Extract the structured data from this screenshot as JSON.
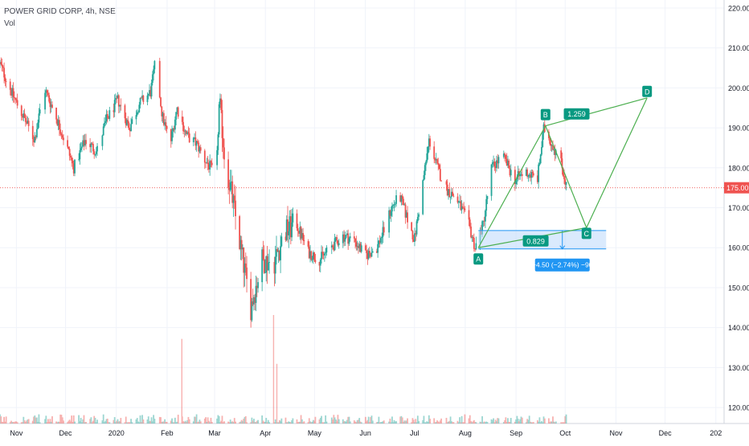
{
  "header": {
    "symbol_line": "POWER GRID CORP, 4h, NSE",
    "volume_label": "Vol"
  },
  "colors": {
    "up": "#26a69a",
    "down": "#ef5350",
    "pattern": "#4caf50",
    "label_bg": "#089981",
    "range_fill": "#bbd9fb",
    "range_stroke": "#2196f3",
    "price_line": "#ef5350"
  },
  "chart_data": {
    "type": "candlestick",
    "title": "",
    "ylim": [
      116,
      222
    ],
    "y_ticks": [
      "120.00",
      "130.00",
      "140.00",
      "150.00",
      "160.00",
      "170.00",
      "180.00",
      "190.00",
      "200.00",
      "210.00",
      "220.00"
    ],
    "x_ticks": [
      "Nov",
      "Dec",
      "2020",
      "Feb",
      "Mar",
      "Apr",
      "May",
      "Jun",
      "Jul",
      "Aug",
      "Sep",
      "Oct",
      "Nov",
      "Dec",
      "202"
    ],
    "x_tick_dates": [
      "2019-11-01",
      "2019-12-01",
      "2020-01-01",
      "2020-02-01",
      "2020-03-01",
      "2020-04-01",
      "2020-05-01",
      "2020-06-01",
      "2020-07-01",
      "2020-08-01",
      "2020-09-01",
      "2020-10-01",
      "2020-11-01",
      "2020-12-01",
      "2021-01-01"
    ],
    "x_range": [
      "2019-10-22",
      "2021-01-06"
    ],
    "current_price": 175.0,
    "current_price_label": "175.00",
    "price_path": [
      [
        "2019-10-22",
        206
      ],
      [
        "2019-10-30",
        198
      ],
      [
        "2019-11-05",
        193
      ],
      [
        "2019-11-12",
        187
      ],
      [
        "2019-11-18",
        200
      ],
      [
        "2019-11-25",
        193
      ],
      [
        "2019-12-02",
        185
      ],
      [
        "2019-12-06",
        180
      ],
      [
        "2019-12-13",
        187
      ],
      [
        "2019-12-20",
        184
      ],
      [
        "2019-12-26",
        192
      ],
      [
        "2020-01-02",
        197
      ],
      [
        "2020-01-09",
        190
      ],
      [
        "2020-01-15",
        196
      ],
      [
        "2020-01-22",
        199
      ],
      [
        "2020-01-25",
        207
      ],
      [
        "2020-01-29",
        193
      ],
      [
        "2020-02-03",
        186
      ],
      [
        "2020-02-07",
        195
      ],
      [
        "2020-02-13",
        188
      ],
      [
        "2020-02-19",
        186
      ],
      [
        "2020-02-24",
        182
      ],
      [
        "2020-03-02",
        178
      ],
      [
        "2020-03-04",
        198
      ],
      [
        "2020-03-07",
        183
      ],
      [
        "2020-03-12",
        172
      ],
      [
        "2020-03-16",
        162
      ],
      [
        "2020-03-19",
        155
      ],
      [
        "2020-03-23",
        145
      ],
      [
        "2020-03-26",
        150
      ],
      [
        "2020-03-30",
        157
      ],
      [
        "2020-04-06",
        156
      ],
      [
        "2020-04-13",
        164
      ],
      [
        "2020-04-20",
        166
      ],
      [
        "2020-04-27",
        159
      ],
      [
        "2020-05-04",
        157
      ],
      [
        "2020-05-11",
        160
      ],
      [
        "2020-05-18",
        163
      ],
      [
        "2020-05-25",
        162
      ],
      [
        "2020-06-01",
        158
      ],
      [
        "2020-06-08",
        160
      ],
      [
        "2020-06-12",
        164
      ],
      [
        "2020-06-17",
        170
      ],
      [
        "2020-06-22",
        173
      ],
      [
        "2020-06-26",
        168
      ],
      [
        "2020-07-01",
        162
      ],
      [
        "2020-07-06",
        176
      ],
      [
        "2020-07-10",
        187
      ],
      [
        "2020-07-15",
        180
      ],
      [
        "2020-07-20",
        175
      ],
      [
        "2020-07-27",
        172
      ],
      [
        "2020-08-03",
        166
      ],
      [
        "2020-08-07",
        160
      ],
      [
        "2020-08-12",
        166
      ],
      [
        "2020-08-17",
        180
      ],
      [
        "2020-08-24",
        183
      ],
      [
        "2020-08-31",
        177
      ],
      [
        "2020-09-07",
        179
      ],
      [
        "2020-09-14",
        177
      ],
      [
        "2020-09-18",
        190
      ],
      [
        "2020-09-23",
        186
      ],
      [
        "2020-09-28",
        182
      ],
      [
        "2020-10-02",
        175
      ]
    ],
    "volume_spikes": [
      [
        "2020-02-10",
        0.78
      ],
      [
        "2020-04-06",
        1.0
      ],
      [
        "2020-04-08",
        0.55
      ]
    ],
    "harmonic_pattern": {
      "points": [
        {
          "label": "A",
          "date": "2020-08-09",
          "price": 160.0
        },
        {
          "label": "B",
          "date": "2020-09-19",
          "price": 190.5
        },
        {
          "label": "C",
          "date": "2020-10-14",
          "price": 165.0
        },
        {
          "label": "D",
          "date": "2020-11-20",
          "price": 197.5
        }
      ],
      "ratios": [
        {
          "value": "1.259",
          "date": "2020-10-08",
          "price": 193.5
        },
        {
          "value": "0.829",
          "date": "2020-09-13",
          "price": 161.7
        }
      ]
    },
    "price_range": {
      "from_date": "2020-08-09",
      "to_date": "2020-10-26",
      "top": 164.3,
      "bottom": 159.7,
      "label": "−4.50 (−2.74%) −90"
    }
  }
}
